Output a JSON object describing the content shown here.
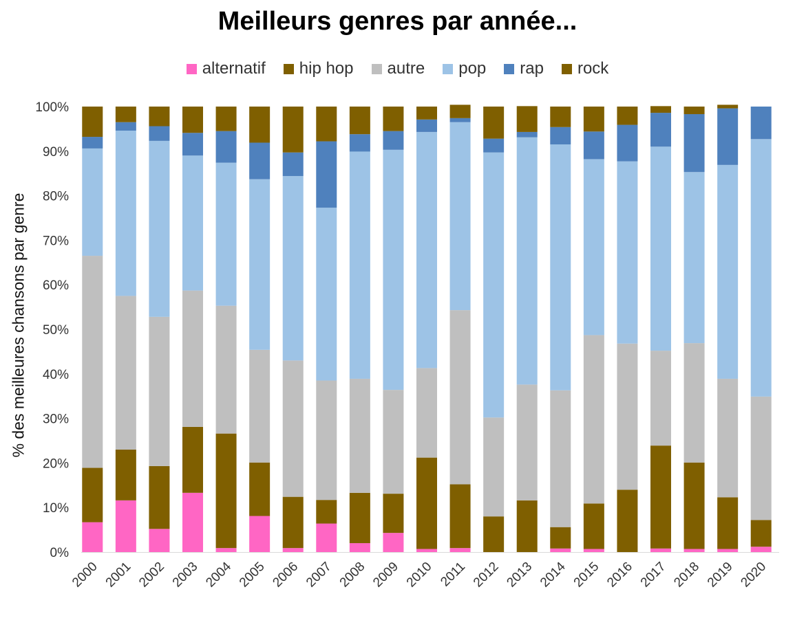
{
  "chart_data": {
    "type": "bar",
    "stacked": true,
    "title": "Meilleurs genres par année...",
    "ylabel": "% des meilleures chansons par genre",
    "xlabel": "",
    "ylim": [
      0,
      100
    ],
    "y_ticks": [
      "0%",
      "10%",
      "20%",
      "30%",
      "40%",
      "50%",
      "60%",
      "70%",
      "80%",
      "90%",
      "100%"
    ],
    "legend_position": "top",
    "grid": false,
    "categories": [
      "2000",
      "2001",
      "2002",
      "2003",
      "2004",
      "2005",
      "2006",
      "2007",
      "2008",
      "2009",
      "2010",
      "2011",
      "2012",
      "2013",
      "2014",
      "2015",
      "2016",
      "2017",
      "2018",
      "2019",
      "2020"
    ],
    "series": [
      {
        "name": "alternatif",
        "color": "#ff66c4",
        "values": [
          6.7,
          11.6,
          5.2,
          13.3,
          0.9,
          8.1,
          0.9,
          6.4,
          2.0,
          4.3,
          0.7,
          0.9,
          0,
          0,
          0.8,
          0.7,
          0,
          0.8,
          0.7,
          0.7,
          1.2
        ]
      },
      {
        "name": "hip hop",
        "color": "#7f5f00",
        "values": [
          12.2,
          11.4,
          14.1,
          14.8,
          25.7,
          12.0,
          11.5,
          5.3,
          11.3,
          8.8,
          20.5,
          14.3,
          8.0,
          11.6,
          4.8,
          10.2,
          14.0,
          23.1,
          19.4,
          11.6,
          6.0
        ]
      },
      {
        "name": "autre",
        "color": "#bfbfbf",
        "values": [
          47.6,
          34.5,
          33.5,
          30.6,
          28.7,
          25.3,
          30.6,
          26.8,
          25.6,
          23.3,
          20.1,
          39.1,
          22.2,
          26.0,
          30.7,
          37.8,
          32.8,
          21.3,
          26.8,
          26.6,
          27.7
        ]
      },
      {
        "name": "pop",
        "color": "#9dc3e6",
        "values": [
          24.1,
          37.1,
          39.5,
          30.3,
          32.1,
          38.3,
          41.4,
          38.8,
          51.0,
          53.9,
          53.0,
          42.2,
          59.5,
          55.5,
          55.2,
          39.5,
          40.9,
          45.8,
          38.4,
          48.0,
          57.8
        ]
      },
      {
        "name": "rap",
        "color": "#4f81bd",
        "values": [
          2.6,
          1.9,
          3.3,
          5.1,
          7.1,
          8.2,
          5.3,
          14.9,
          3.9,
          4.2,
          2.8,
          0.9,
          3.1,
          1.2,
          3.9,
          6.2,
          8.2,
          7.6,
          13.0,
          12.7,
          7.3
        ]
      },
      {
        "name": "rock",
        "color": "#7f5f00",
        "values": [
          6.8,
          3.5,
          4.4,
          5.9,
          5.5,
          8.1,
          10.3,
          7.8,
          6.2,
          5.5,
          2.9,
          3.0,
          7.2,
          5.8,
          4.6,
          5.6,
          4.1,
          1.5,
          1.7,
          0.8,
          0
        ]
      }
    ]
  }
}
